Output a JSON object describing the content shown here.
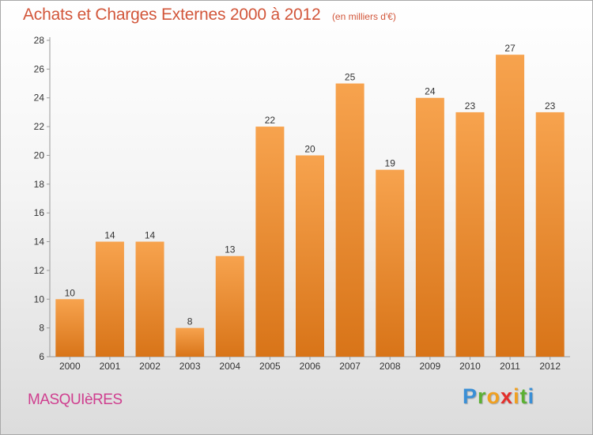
{
  "header": {
    "title": "Achats et Charges Externes 2000 à 2012",
    "unit": "(en milliers d'€)"
  },
  "footer": {
    "commune": "MASQUIèRES",
    "brand_letters": [
      {
        "ch": "P",
        "color": "#3a8fd6"
      },
      {
        "ch": "r",
        "color": "#5bb033"
      },
      {
        "ch": "o",
        "color": "#f0a020"
      },
      {
        "ch": "x",
        "color": "#e4302c"
      },
      {
        "ch": "i",
        "color": "#f0a020"
      },
      {
        "ch": "t",
        "color": "#5bb033"
      },
      {
        "ch": "i",
        "color": "#3a8fd6"
      }
    ]
  },
  "colors": {
    "bar_light": "#f7a34e",
    "bar_dark": "#d87418",
    "title": "#d2563a",
    "commune": "#cf3f8f"
  },
  "chart_data": {
    "type": "bar",
    "title": "Achats et Charges Externes 2000 à 2012",
    "subtitle": "(en milliers d'€)",
    "categories": [
      "2000",
      "2001",
      "2002",
      "2003",
      "2004",
      "2005",
      "2006",
      "2007",
      "2008",
      "2009",
      "2010",
      "2011",
      "2012"
    ],
    "values": [
      10,
      14,
      14,
      8,
      13,
      22,
      20,
      25,
      19,
      24,
      23,
      27,
      23
    ],
    "ylim": [
      6,
      28
    ],
    "yticks": [
      6,
      8,
      10,
      12,
      14,
      16,
      18,
      20,
      22,
      24,
      26,
      28
    ],
    "grid": false,
    "data_labels": true
  }
}
